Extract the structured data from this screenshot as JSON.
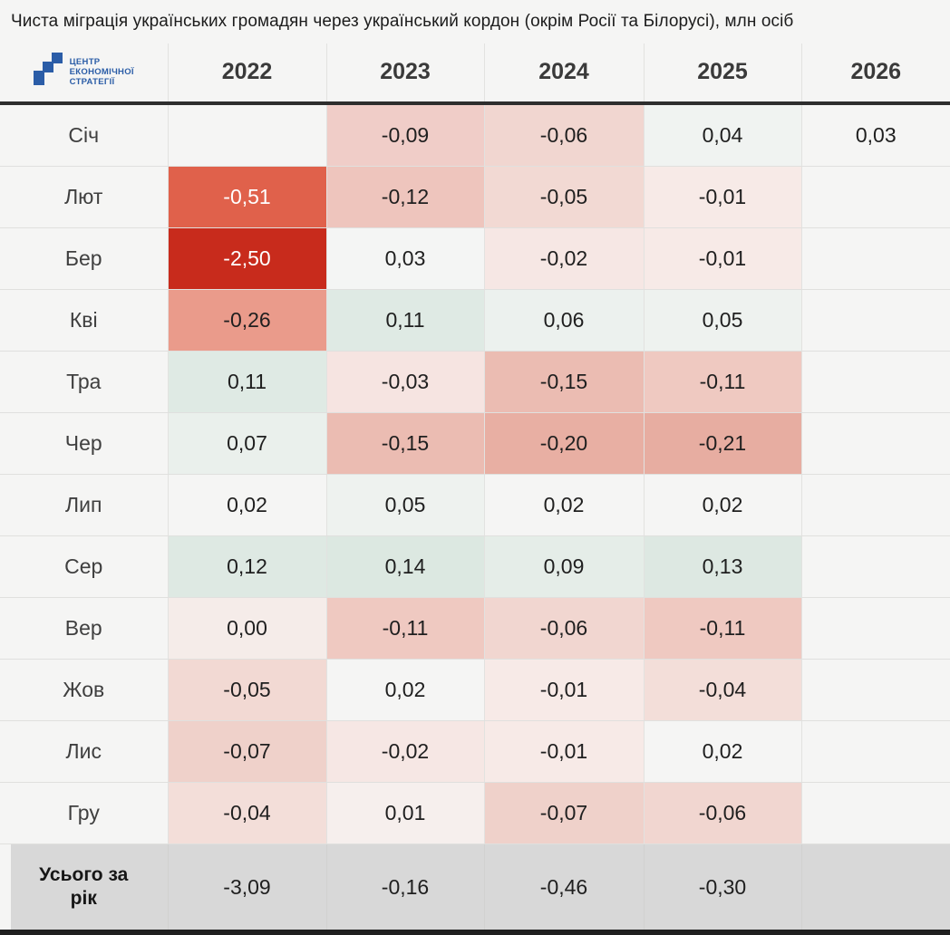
{
  "title": "Чиста міграція українських громадян через український кордон (окрім Росії та Білорусі), млн осіб",
  "logo": {
    "lines": [
      "ЦЕНТР",
      "ЕКОНОМІЧНОЇ",
      "СТРАТЕГІЇ"
    ],
    "color": "#2B5DA7",
    "icon": "stairs-icon"
  },
  "colors": {
    "page_bg": "#F5F5F4",
    "header_rule": "#2E2E2E",
    "totals_bg": "#D8D8D8",
    "footer_bar": "#1F1F1F",
    "negative_extreme": "#C82B1C",
    "negative_strong": "#E0614B",
    "positive_teal": "#DCE8E1"
  },
  "chart_data": {
    "type": "heatmap",
    "title": "Чиста міграція українських громадян через український кордон (окрім Росії та Білорусі), млн осіб",
    "unit": "млн осіб",
    "columns": [
      "2022",
      "2023",
      "2024",
      "2025",
      "2026"
    ],
    "rows": [
      {
        "label": "Січ",
        "cells": [
          {
            "v": ""
          },
          {
            "v": "-0,09",
            "bg": "#F0CDC8"
          },
          {
            "v": "-0,06",
            "bg": "#F1D6D0"
          },
          {
            "v": "0,04",
            "bg": "#F0F3F1"
          },
          {
            "v": "0,03"
          }
        ]
      },
      {
        "label": "Лют",
        "cells": [
          {
            "v": "-0,51",
            "bg": "#E0614B",
            "fg": "#FFFFFF"
          },
          {
            "v": "-0,12",
            "bg": "#EEC5BD"
          },
          {
            "v": "-0,05",
            "bg": "#F2D9D3"
          },
          {
            "v": "-0,01",
            "bg": "#F7EAE7"
          },
          {
            "v": ""
          }
        ]
      },
      {
        "label": "Бер",
        "cells": [
          {
            "v": "-2,50",
            "bg": "#C82B1C",
            "fg": "#FFFFFF"
          },
          {
            "v": "0,03",
            "bg": "#F4F5F4"
          },
          {
            "v": "-0,02",
            "bg": "#F6E7E4"
          },
          {
            "v": "-0,01",
            "bg": "#F7EAE7"
          },
          {
            "v": ""
          }
        ]
      },
      {
        "label": "Кві",
        "cells": [
          {
            "v": "-0,26",
            "bg": "#EA9B8B"
          },
          {
            "v": "0,11",
            "bg": "#DFEAE4"
          },
          {
            "v": "0,06",
            "bg": "#ECF1EE"
          },
          {
            "v": "0,05",
            "bg": "#EEF2EF"
          },
          {
            "v": ""
          }
        ]
      },
      {
        "label": "Тра",
        "cells": [
          {
            "v": "0,11",
            "bg": "#DFEAE4"
          },
          {
            "v": "-0,03",
            "bg": "#F6E4E1"
          },
          {
            "v": "-0,15",
            "bg": "#EBBCB2"
          },
          {
            "v": "-0,11",
            "bg": "#EFC9C1"
          },
          {
            "v": ""
          }
        ]
      },
      {
        "label": "Чер",
        "cells": [
          {
            "v": "0,07",
            "bg": "#EAF0EC"
          },
          {
            "v": "-0,15",
            "bg": "#EBBCB2"
          },
          {
            "v": "-0,20",
            "bg": "#E8AFA3"
          },
          {
            "v": "-0,21",
            "bg": "#E7ADA1"
          },
          {
            "v": ""
          }
        ]
      },
      {
        "label": "Лип",
        "cells": [
          {
            "v": "0,02",
            "bg": "#F5F5F4"
          },
          {
            "v": "0,05",
            "bg": "#EEF2EF"
          },
          {
            "v": "0,02",
            "bg": "#F5F5F4"
          },
          {
            "v": "0,02",
            "bg": "#F5F5F4"
          },
          {
            "v": ""
          }
        ]
      },
      {
        "label": "Сер",
        "cells": [
          {
            "v": "0,12",
            "bg": "#DEE9E3"
          },
          {
            "v": "0,14",
            "bg": "#DCE8E1"
          },
          {
            "v": "0,09",
            "bg": "#E5EDE8"
          },
          {
            "v": "0,13",
            "bg": "#DDE8E2"
          },
          {
            "v": ""
          }
        ]
      },
      {
        "label": "Вер",
        "cells": [
          {
            "v": "0,00",
            "bg": "#F5ECE9"
          },
          {
            "v": "-0,11",
            "bg": "#EFC9C1"
          },
          {
            "v": "-0,06",
            "bg": "#F1D6D0"
          },
          {
            "v": "-0,11",
            "bg": "#EFC9C1"
          },
          {
            "v": ""
          }
        ]
      },
      {
        "label": "Жов",
        "cells": [
          {
            "v": "-0,05",
            "bg": "#F2D9D3"
          },
          {
            "v": "0,02",
            "bg": "#F5F5F4"
          },
          {
            "v": "-0,01",
            "bg": "#F7EAE7"
          },
          {
            "v": "-0,04",
            "bg": "#F3DED9"
          },
          {
            "v": ""
          }
        ]
      },
      {
        "label": "Лис",
        "cells": [
          {
            "v": "-0,07",
            "bg": "#EFD1CA"
          },
          {
            "v": "-0,02",
            "bg": "#F6E7E4"
          },
          {
            "v": "-0,01",
            "bg": "#F7EAE7"
          },
          {
            "v": "0,02",
            "bg": "#F5F5F4"
          },
          {
            "v": ""
          }
        ]
      },
      {
        "label": "Гру",
        "cells": [
          {
            "v": "-0,04",
            "bg": "#F3DED9"
          },
          {
            "v": "0,01",
            "bg": "#F6EFED"
          },
          {
            "v": "-0,07",
            "bg": "#EFD1CA"
          },
          {
            "v": "-0,06",
            "bg": "#F1D6D0"
          },
          {
            "v": ""
          }
        ]
      }
    ],
    "totals": {
      "label": "Усього за рік",
      "values": [
        "-3,09",
        "-0,16",
        "-0,46",
        "-0,30",
        ""
      ]
    }
  }
}
